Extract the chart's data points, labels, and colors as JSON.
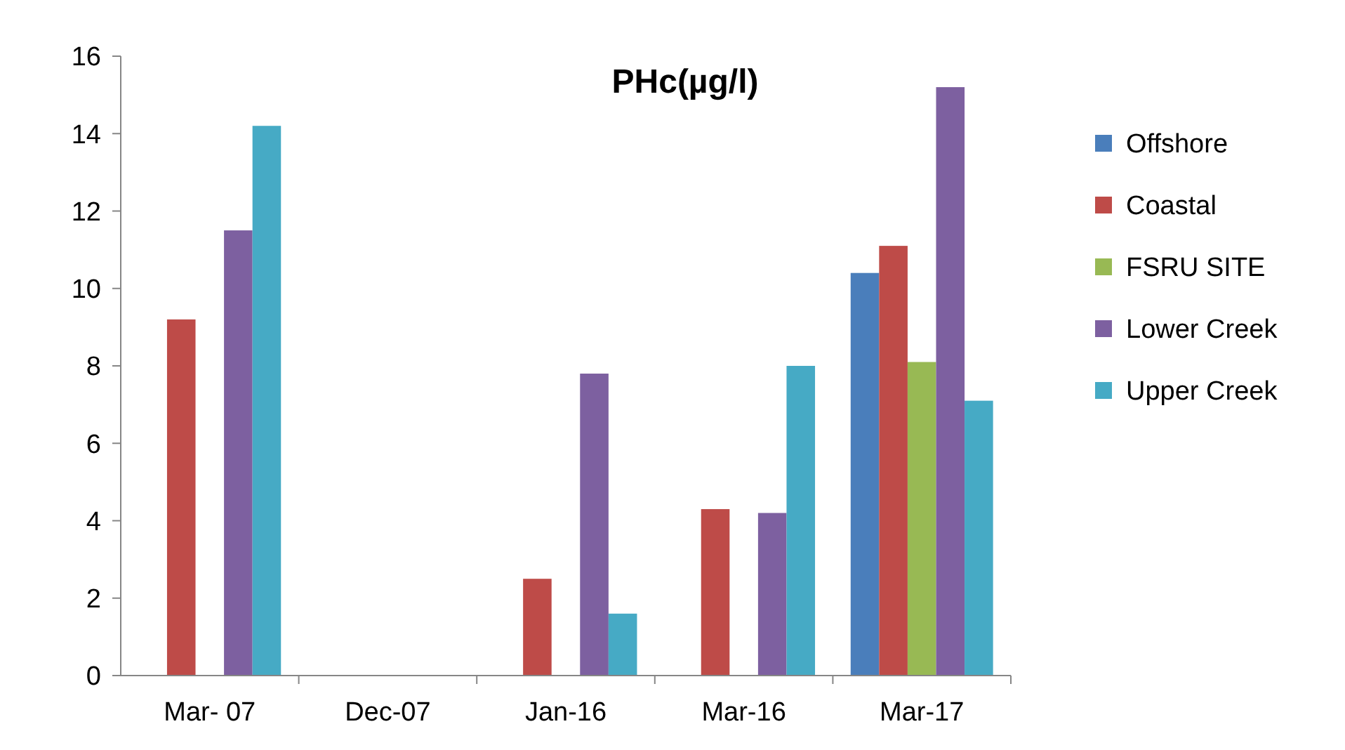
{
  "chart_data": {
    "type": "bar",
    "title": "PHc(µg/l)",
    "categories": [
      "Mar- 07",
      "Dec-07",
      "Jan-16",
      "Mar-16",
      "Mar-17"
    ],
    "series": [
      {
        "name": "Offshore",
        "color": "#4a7ebb",
        "values": [
          null,
          null,
          null,
          null,
          10.4
        ]
      },
      {
        "name": "Coastal",
        "color": "#be4b48",
        "values": [
          9.2,
          null,
          2.5,
          4.3,
          11.1
        ]
      },
      {
        "name": "FSRU SITE",
        "color": "#98b954",
        "values": [
          null,
          null,
          null,
          null,
          8.1
        ]
      },
      {
        "name": "Lower Creek",
        "color": "#7d60a0",
        "values": [
          11.5,
          null,
          7.8,
          4.2,
          15.2
        ]
      },
      {
        "name": "Upper Creek",
        "color": "#46aac5",
        "values": [
          14.2,
          null,
          1.6,
          8.0,
          7.1
        ]
      }
    ],
    "ylim": [
      0,
      16
    ],
    "yticks": [
      0,
      2,
      4,
      6,
      8,
      10,
      12,
      14,
      16
    ],
    "grid": false,
    "legend": "right"
  }
}
